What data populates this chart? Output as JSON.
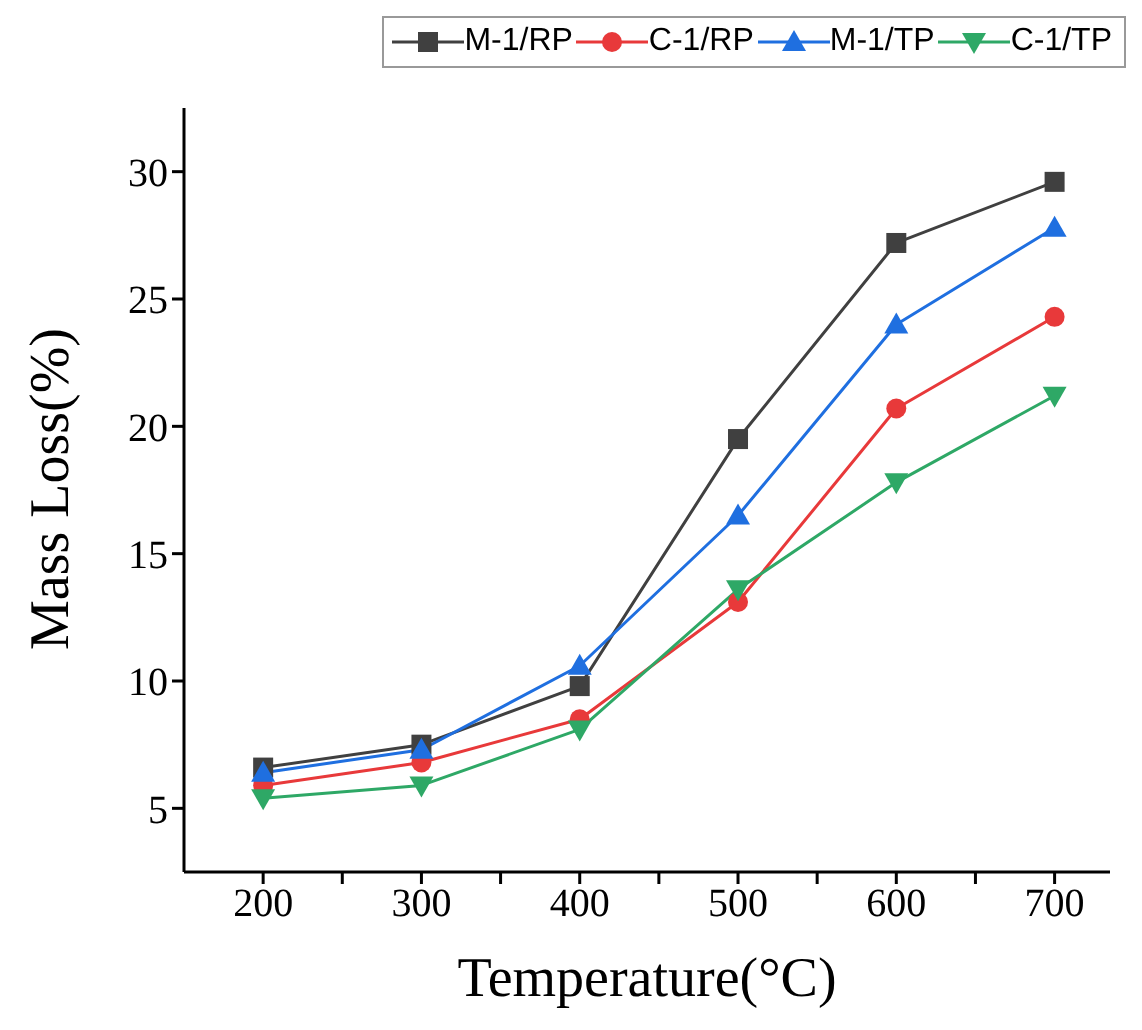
{
  "chart_data": {
    "type": "line",
    "xlabel": "Temperature(°C)",
    "ylabel": "Mass Loss(%)",
    "x": [
      200,
      300,
      400,
      500,
      600,
      700
    ],
    "xlim": [
      150,
      735
    ],
    "xticks": [
      200,
      {
        "value": 250,
        "label": null
      },
      300,
      {
        "value": 350,
        "label": null
      },
      400,
      {
        "value": 450,
        "label": null
      },
      500,
      {
        "value": 550,
        "label": null
      },
      600,
      {
        "value": 650,
        "label": null
      },
      700
    ],
    "ylim": [
      2.5,
      32.5
    ],
    "yticks": [
      5,
      10,
      15,
      20,
      25,
      30
    ],
    "legend": "top",
    "grid": false,
    "line_style": "solid",
    "series": [
      {
        "name": "M-1/RP",
        "color": "#404040",
        "marker": "square",
        "values": [
          6.6,
          7.5,
          9.8,
          19.5,
          27.2,
          29.6
        ]
      },
      {
        "name": "C-1/RP",
        "color": "#e8393a",
        "marker": "circle",
        "values": [
          5.9,
          6.8,
          8.5,
          13.1,
          20.7,
          24.3
        ]
      },
      {
        "name": "M-1/TP",
        "color": "#1f6fe0",
        "marker": "triangle",
        "values": [
          6.4,
          7.3,
          10.6,
          16.5,
          24.0,
          27.8
        ]
      },
      {
        "name": "C-1/TP",
        "color": "#2ea866",
        "marker": "triangle-down",
        "values": [
          5.4,
          5.9,
          8.1,
          13.6,
          17.8,
          21.2
        ]
      }
    ]
  }
}
